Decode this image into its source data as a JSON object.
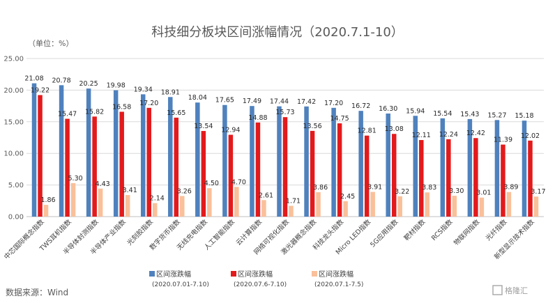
{
  "chart_data": {
    "type": "bar",
    "title": "科技细分板块区间涨幅情况（2020.7.1-10）",
    "unit_label": "（单位：%）",
    "ylim": [
      0,
      25
    ],
    "yticks": [
      "0.00",
      "5.00",
      "10.00",
      "15.00",
      "20.00",
      "25.00"
    ],
    "grid": true,
    "legend_position": "bottom",
    "categories": [
      "中芯国际概念指数",
      "TWS耳机指数",
      "半导体封测指数",
      "半导体产业指数",
      "光刻胶指数",
      "数字货币指数",
      "无线充电指数",
      "人工智能指数",
      "云计算指数",
      "网络可视化指数",
      "激光器概念指数",
      "科技龙头指数",
      "Micro LED指数",
      "5G应用指数",
      "靶材指数",
      "RCS指数",
      "物联网指数",
      "光纤指数",
      "新型显示技术指数"
    ],
    "series": [
      {
        "name": "区间涨跌幅",
        "period": "(2020.07.01-7.10)",
        "color": "#4f81bd",
        "values": [
          21.08,
          20.78,
          20.25,
          19.98,
          19.34,
          18.91,
          18.04,
          17.65,
          17.49,
          17.44,
          17.42,
          17.2,
          16.72,
          16.3,
          15.94,
          15.54,
          15.43,
          15.27,
          15.18
        ],
        "labels": [
          "21.08",
          "20.78",
          "20.25",
          "19.98",
          "19.34",
          "18.91",
          "18.04",
          "17.65",
          "17.49",
          "17.44",
          "17.42",
          "17.20",
          "16.72",
          "16.30",
          "15.94",
          "15.54",
          "15.43",
          "15.27",
          "15.18"
        ]
      },
      {
        "name": "区间涨跌幅",
        "period": "(2020.07.6-7.10)",
        "color": "#e31a1c",
        "values": [
          19.22,
          15.47,
          15.82,
          16.58,
          17.2,
          15.65,
          13.54,
          12.94,
          14.88,
          15.73,
          13.56,
          14.75,
          12.81,
          13.08,
          12.11,
          12.24,
          12.42,
          11.39,
          12.02
        ],
        "labels": [
          "19.22",
          "15.47",
          "15.82",
          "16.58",
          "17.20",
          "15.65",
          "13.54",
          "12.94",
          "14.88",
          "15.73",
          "13.56",
          "14.75",
          "12.81",
          "13.08",
          "12.11",
          "12.24",
          "12.42",
          "11.39",
          "12.02"
        ]
      },
      {
        "name": "区间涨跌幅",
        "period": "(2020.07.1-7.5)",
        "color": "#f9c09a",
        "values": [
          1.86,
          5.3,
          4.43,
          3.41,
          2.14,
          3.26,
          4.5,
          4.7,
          2.61,
          1.71,
          3.86,
          2.45,
          3.91,
          3.22,
          3.83,
          3.3,
          3.01,
          3.89,
          3.17
        ],
        "labels": [
          "1.86",
          "5.30",
          "4.43",
          "3.41",
          "2.14",
          "3.26",
          "4.50",
          "4.70",
          "2.61",
          "1.71",
          "3.86",
          "2.45",
          "3.91",
          "3.22",
          "3.83",
          "3.30",
          "3.01",
          "3.89",
          "3.17"
        ]
      }
    ]
  },
  "source": "数据来源：Wind",
  "watermark": "格隆汇"
}
